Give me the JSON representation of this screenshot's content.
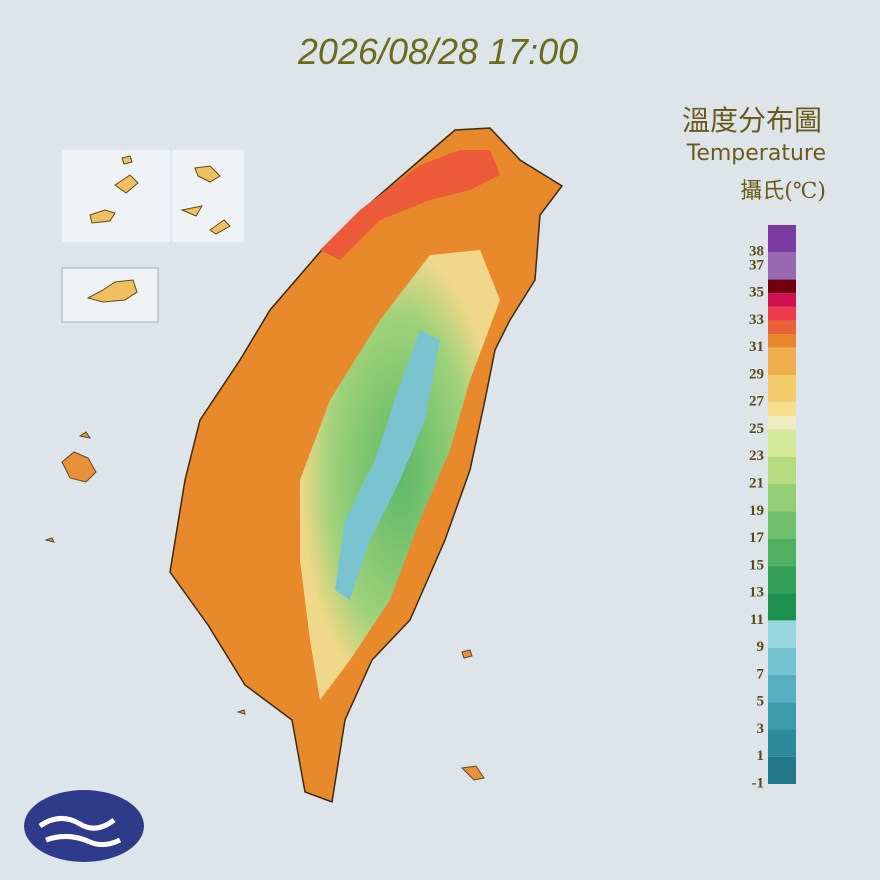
{
  "header": {
    "timestamp": "2026/08/28 17:00"
  },
  "legend": {
    "title": "溫度分布圖",
    "subtitle": "Temperature",
    "unit": "攝氏(℃)",
    "lim": [
      -1,
      40
    ],
    "ticks": [
      38,
      37,
      35,
      33,
      31,
      29,
      27,
      25,
      23,
      21,
      19,
      17,
      15,
      13,
      11,
      9,
      7,
      5,
      3,
      1,
      -1
    ],
    "stops": [
      {
        "value": -1,
        "color": "#217887"
      },
      {
        "value": 1,
        "color": "#2d8a9b"
      },
      {
        "value": 3,
        "color": "#3c9cae"
      },
      {
        "value": 5,
        "color": "#55afc0"
      },
      {
        "value": 7,
        "color": "#72c2d0"
      },
      {
        "value": 9,
        "color": "#98d6e0"
      },
      {
        "value": 11,
        "color": "#1e9050"
      },
      {
        "value": 13,
        "color": "#32a058"
      },
      {
        "value": 15,
        "color": "#4fb062"
      },
      {
        "value": 17,
        "color": "#70bf6c"
      },
      {
        "value": 19,
        "color": "#93cd74"
      },
      {
        "value": 21,
        "color": "#b5dc7e"
      },
      {
        "value": 23,
        "color": "#d4e897"
      },
      {
        "value": 25,
        "color": "#eeedc2"
      },
      {
        "value": 26,
        "color": "#f5df8c"
      },
      {
        "value": 27,
        "color": "#f4cb68"
      },
      {
        "value": 29,
        "color": "#efae4c"
      },
      {
        "value": 31,
        "color": "#e8872a"
      },
      {
        "value": 32,
        "color": "#ea6238"
      },
      {
        "value": 33,
        "color": "#ef3a4e"
      },
      {
        "value": 34,
        "color": "#d01050"
      },
      {
        "value": 35,
        "color": "#720010"
      },
      {
        "value": 36,
        "color": "#9868b0"
      },
      {
        "value": 38,
        "color": "#7a3aa0"
      }
    ]
  }
}
